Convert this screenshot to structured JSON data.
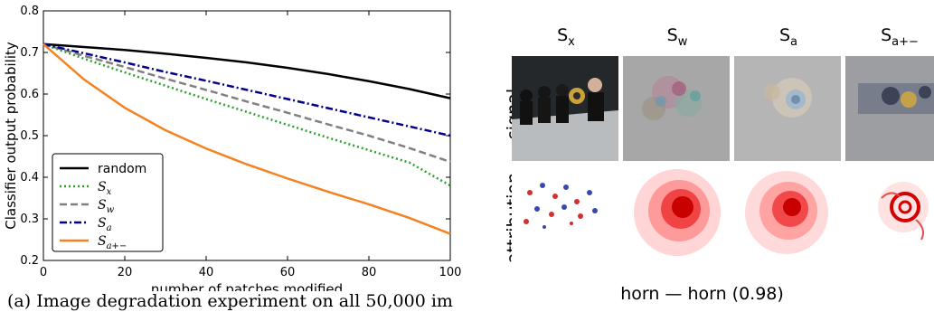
{
  "chart_data": {
    "type": "line",
    "xlabel": "number of patches modified",
    "ylabel": "Classifier output probability",
    "xlim": [
      0,
      100
    ],
    "ylim": [
      0.2,
      0.8
    ],
    "xticks": [
      0,
      20,
      40,
      60,
      80,
      100
    ],
    "yticks": [
      0.2,
      0.3,
      0.4,
      0.5,
      0.6,
      0.7,
      0.8
    ],
    "x": [
      0,
      10,
      20,
      30,
      40,
      50,
      60,
      70,
      80,
      90,
      100
    ],
    "legend_position": "lower-left",
    "series": [
      {
        "name": "random",
        "color": "#000000",
        "dash": "solid",
        "values": [
          0.72,
          0.713,
          0.706,
          0.697,
          0.687,
          0.676,
          0.663,
          0.648,
          0.631,
          0.612,
          0.59
        ]
      },
      {
        "name": "S_x",
        "color": "#2ca02c",
        "dash": "dotted",
        "values": [
          0.72,
          0.685,
          0.652,
          0.62,
          0.588,
          0.557,
          0.526,
          0.495,
          0.465,
          0.435,
          0.38
        ]
      },
      {
        "name": "S_w",
        "color": "#808080",
        "dash": "dashed",
        "values": [
          0.72,
          0.692,
          0.665,
          0.637,
          0.61,
          0.582,
          0.555,
          0.527,
          0.5,
          0.47,
          0.437
        ]
      },
      {
        "name": "S_a",
        "color": "#00008b",
        "dash": "dashdot",
        "values": [
          0.72,
          0.698,
          0.676,
          0.653,
          0.632,
          0.61,
          0.588,
          0.566,
          0.544,
          0.522,
          0.5
        ]
      },
      {
        "name": "S_{a+-}",
        "color": "#f58220",
        "dash": "solid",
        "values": [
          0.72,
          0.635,
          0.567,
          0.513,
          0.469,
          0.431,
          0.397,
          0.365,
          0.335,
          0.302,
          0.264
        ]
      }
    ]
  },
  "legend": {
    "random": "random",
    "sx_base": "S",
    "sx_sub": "x",
    "sw_base": "S",
    "sw_sub": "w",
    "sa_base": "S",
    "sa_sub": "a",
    "sapm_base": "S",
    "sapm_sub": "a+−"
  },
  "caption": "(a) Image degradation experiment on all 50,000 im",
  "figure": {
    "columns": [
      {
        "base": "S",
        "sub": "x"
      },
      {
        "base": "S",
        "sub": "w"
      },
      {
        "base": "S",
        "sub": "a"
      },
      {
        "base": "S",
        "sub": "a+−"
      }
    ],
    "rows": [
      "signal",
      "attribution"
    ],
    "caption": "horn — horn (0.98)"
  }
}
